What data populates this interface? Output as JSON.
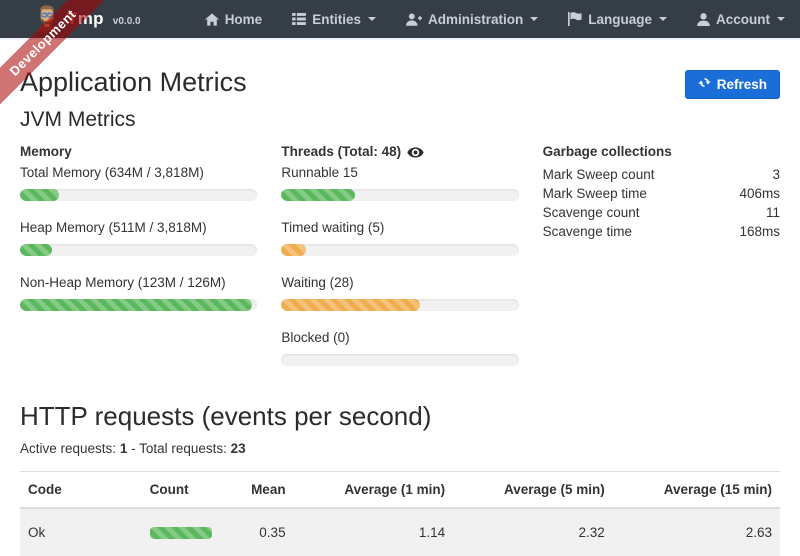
{
  "colors": {
    "navbar_bg": "#353d47",
    "primary_blue": "#1b6ed9",
    "success_green": "#5cb85c",
    "warning_orange": "#f0ad4e",
    "ribbon_red": "rgba(170,0,0,0.55)",
    "row_gray": "#f1f1f1"
  },
  "ribbon": {
    "label": "Development"
  },
  "navbar": {
    "brand": {
      "title_first": "T",
      "title_rest": "mp",
      "version": "v0.0.0"
    },
    "items": [
      {
        "label": "Home",
        "icon": "home-icon",
        "caret": false
      },
      {
        "label": "Entities",
        "icon": "th-list-icon",
        "caret": true
      },
      {
        "label": "Administration",
        "icon": "user-plus-icon",
        "caret": true
      },
      {
        "label": "Language",
        "icon": "flag-icon",
        "caret": true
      },
      {
        "label": "Account",
        "icon": "user-icon",
        "caret": true
      }
    ]
  },
  "page": {
    "title": "Application Metrics",
    "refresh_label": "Refresh",
    "refresh_icon": "refresh-icon",
    "jvm_title": "JVM Metrics"
  },
  "memory": {
    "header": "Memory",
    "meters": [
      {
        "label": "Total Memory (634M / 3,818M)",
        "percent": 16.6,
        "color": "green"
      },
      {
        "label": "Heap Memory (511M / 3,818M)",
        "percent": 13.4,
        "color": "green"
      },
      {
        "label": "Non-Heap Memory (123M / 126M)",
        "percent": 97.6,
        "color": "green"
      }
    ]
  },
  "threads": {
    "header": "Threads (Total: 48)",
    "eye_icon": "eye-icon",
    "meters": [
      {
        "label": "Runnable 15",
        "percent": 31.25,
        "color": "green"
      },
      {
        "label": "Timed waiting (5)",
        "percent": 10.4,
        "color": "orange"
      },
      {
        "label": "Waiting (28)",
        "percent": 58.3,
        "color": "orange"
      },
      {
        "label": "Blocked (0)",
        "percent": 0,
        "color": "orange"
      }
    ]
  },
  "garbage": {
    "header": "Garbage collections",
    "rows": [
      {
        "label": "Mark Sweep count",
        "value": "3"
      },
      {
        "label": "Mark Sweep time",
        "value": "406ms"
      },
      {
        "label": "Scavenge count",
        "value": "11"
      },
      {
        "label": "Scavenge time",
        "value": "168ms"
      }
    ]
  },
  "http": {
    "title": "HTTP requests (events per second)",
    "active_label": "Active requests:",
    "active_value": "1",
    "separator": "-",
    "total_label": "Total requests:",
    "total_value": "23",
    "table": {
      "headers": [
        "Code",
        "Count",
        "Mean",
        "Average (1 min)",
        "Average (5 min)",
        "Average (15 min)"
      ],
      "rows": [
        {
          "code": "Ok",
          "count_bar": {
            "percent": 100,
            "color": "green"
          },
          "mean": "0.35",
          "avg1": "1.14",
          "avg5": "2.32",
          "avg15": "2.63"
        }
      ]
    }
  }
}
